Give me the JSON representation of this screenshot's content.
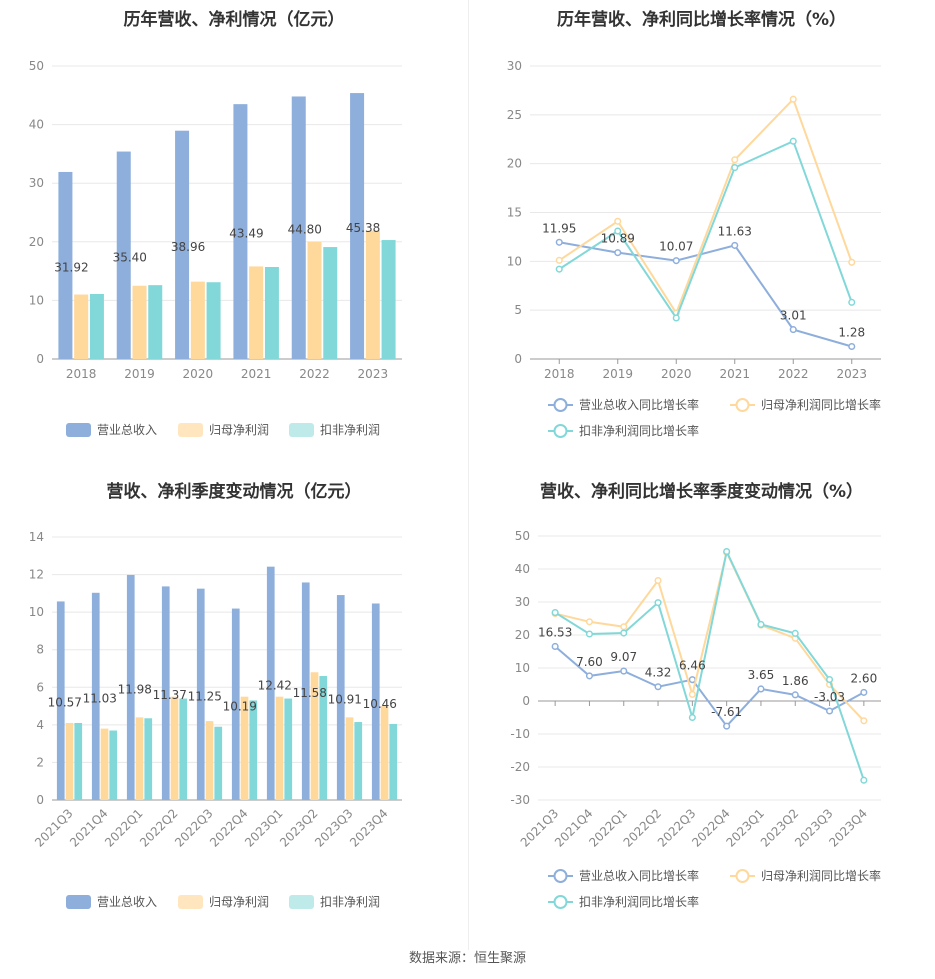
{
  "source_text": "数据来源：恒生聚源",
  "colors": {
    "revenue": "#8eaedc",
    "net_profit": "#ffd89c",
    "deducted_profit": "#82d8d8",
    "grid": "#e8e8e8",
    "axis": "#999999"
  },
  "chart_data": [
    {
      "id": "annual-amount",
      "type": "bar",
      "title": "历年营收、净利情况（亿元）",
      "categories": [
        "2018",
        "2019",
        "2020",
        "2021",
        "2022",
        "2023"
      ],
      "ylim": [
        0,
        50
      ],
      "yticks": [
        0,
        10,
        20,
        30,
        40,
        50
      ],
      "series": [
        {
          "name": "营业总收入",
          "values": [
            31.92,
            35.4,
            38.96,
            43.49,
            44.8,
            45.38
          ],
          "labels": [
            "31.92",
            "35.40",
            "38.96",
            "43.49",
            "44.80",
            "45.38"
          ]
        },
        {
          "name": "归母净利润",
          "values": [
            11.0,
            12.5,
            13.2,
            15.8,
            20.0,
            21.9
          ]
        },
        {
          "name": "扣非净利润",
          "values": [
            11.1,
            12.6,
            13.1,
            15.7,
            19.1,
            20.3
          ]
        }
      ],
      "grid": true,
      "legend": "bottom"
    },
    {
      "id": "annual-growth",
      "type": "line",
      "title": "历年营收、净利同比增长率情况（%）",
      "categories": [
        "2018",
        "2019",
        "2020",
        "2021",
        "2022",
        "2023"
      ],
      "ylim": [
        0,
        30
      ],
      "yticks": [
        0,
        5,
        10,
        15,
        20,
        25,
        30
      ],
      "series": [
        {
          "name": "营业总收入同比增长率",
          "values": [
            11.95,
            10.89,
            10.07,
            11.63,
            3.01,
            1.28
          ],
          "labels": [
            "11.95",
            "10.89",
            "10.07",
            "11.63",
            "3.01",
            "1.28"
          ]
        },
        {
          "name": "归母净利润同比增长率",
          "values": [
            10.1,
            14.1,
            4.7,
            20.4,
            26.6,
            9.9
          ]
        },
        {
          "name": "扣非净利润同比增长率",
          "values": [
            9.2,
            13.1,
            4.2,
            19.6,
            22.3,
            5.8
          ]
        }
      ],
      "grid": true,
      "legend": "bottom"
    },
    {
      "id": "quarterly-amount",
      "type": "bar",
      "title": "营收、净利季度变动情况（亿元）",
      "categories": [
        "2021Q3",
        "2021Q4",
        "2022Q1",
        "2022Q2",
        "2022Q3",
        "2022Q4",
        "2023Q1",
        "2023Q2",
        "2023Q3",
        "2023Q4"
      ],
      "ylim": [
        0,
        14
      ],
      "yticks": [
        0,
        2,
        4,
        6,
        8,
        10,
        12,
        14
      ],
      "series": [
        {
          "name": "营业总收入",
          "values": [
            10.57,
            11.03,
            11.98,
            11.37,
            11.25,
            10.19,
            12.42,
            11.58,
            10.91,
            10.46
          ],
          "labels": [
            "10.57",
            "11.03",
            "11.98",
            "11.37",
            "11.25",
            "10.19",
            "12.42",
            "11.58",
            "10.91",
            "10.46"
          ]
        },
        {
          "name": "归母净利润",
          "values": [
            4.1,
            3.8,
            4.4,
            5.5,
            4.2,
            5.5,
            5.5,
            6.8,
            4.4,
            5.0
          ]
        },
        {
          "name": "扣非净利润",
          "values": [
            4.1,
            3.7,
            4.35,
            5.4,
            3.9,
            5.3,
            5.4,
            6.6,
            4.15,
            4.05
          ]
        }
      ],
      "grid": true,
      "legend": "bottom"
    },
    {
      "id": "quarterly-growth",
      "type": "line",
      "title": "营收、净利同比增长率季度变动情况（%）",
      "categories": [
        "2021Q3",
        "2021Q4",
        "2022Q1",
        "2022Q2",
        "2022Q3",
        "2022Q4",
        "2023Q1",
        "2023Q2",
        "2023Q3",
        "2023Q4"
      ],
      "ylim": [
        -30,
        50
      ],
      "yticks": [
        -30,
        -20,
        -10,
        0,
        10,
        20,
        30,
        40,
        50
      ],
      "series": [
        {
          "name": "营业总收入同比增长率",
          "values": [
            16.53,
            7.6,
            9.07,
            4.32,
            6.46,
            -7.61,
            3.65,
            1.86,
            -3.03,
            2.6
          ],
          "labels": [
            "16.53",
            "7.60",
            "9.07",
            "4.32",
            "6.46",
            "-7.61",
            "3.65",
            "1.86",
            "-3.03",
            "2.60"
          ]
        },
        {
          "name": "归母净利润同比增长率",
          "values": [
            26.5,
            24.0,
            22.5,
            36.5,
            2.0,
            45.0,
            23.0,
            19.0,
            5.0,
            -6.0
          ]
        },
        {
          "name": "扣非净利润同比增长率",
          "values": [
            26.8,
            20.3,
            20.6,
            29.8,
            -5.0,
            45.3,
            23.2,
            20.5,
            6.5,
            -24.0
          ]
        }
      ],
      "grid": true,
      "legend": "bottom"
    }
  ]
}
